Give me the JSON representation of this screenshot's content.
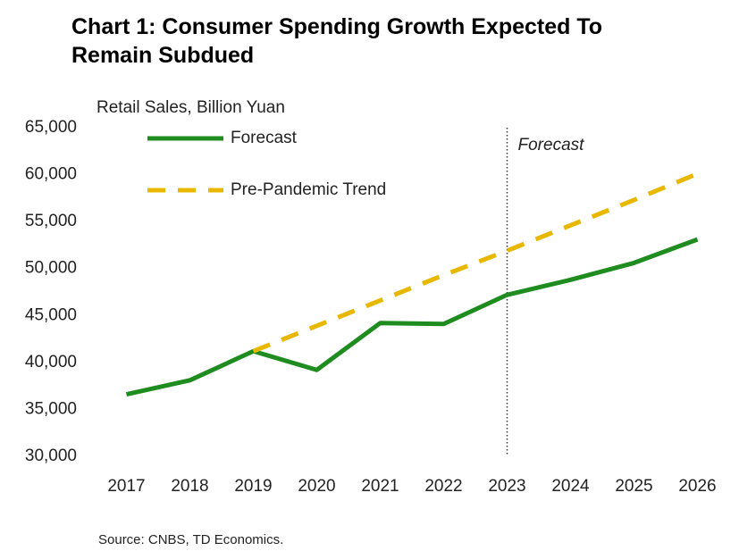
{
  "chart_data": {
    "type": "line",
    "title": "Chart 1: Consumer Spending Growth Expected To Remain Subdued",
    "y_label": "Retail Sales, Billion Yuan",
    "source": "Source: CNBS, TD Economics.",
    "categories": [
      "2017",
      "2018",
      "2019",
      "2020",
      "2021",
      "2022",
      "2023",
      "2024",
      "2025",
      "2026"
    ],
    "series": [
      {
        "name": "Forecast",
        "color": "#1e8c1e",
        "dash": false,
        "values": [
          36600,
          38100,
          41200,
          39200,
          44200,
          44100,
          47200,
          48800,
          50600,
          53100
        ]
      },
      {
        "name": "Pre-Pandemic Trend",
        "color": "#e8b800",
        "dash": true,
        "values": [
          null,
          null,
          41200,
          43900,
          46600,
          49300,
          51900,
          54600,
          57300,
          60100
        ]
      }
    ],
    "annotation": {
      "text": "Forecast",
      "x": "2023"
    },
    "ylim": [
      30000,
      65000
    ],
    "yticks": [
      {
        "value": 30000,
        "label": "30,000"
      },
      {
        "value": 35000,
        "label": "35,000"
      },
      {
        "value": 40000,
        "label": "40,000"
      },
      {
        "value": 45000,
        "label": "45,000"
      },
      {
        "value": 50000,
        "label": "50,000"
      },
      {
        "value": 55000,
        "label": "55,000"
      },
      {
        "value": 60000,
        "label": "60,000"
      },
      {
        "value": 65000,
        "label": "65,000"
      }
    ],
    "grid": false,
    "legend": "top-left"
  }
}
